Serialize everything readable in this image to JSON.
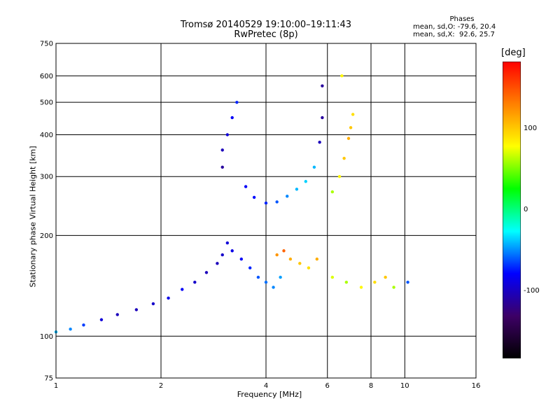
{
  "title_line1": "Tromsø 20140529 19:10:00–19:11:43",
  "title_line2": "RwPretec (8p)",
  "phases": {
    "header": "Phases",
    "line1": "mean, sd,O: -79.6, 20.4",
    "line2": "mean, sd,X:  92.6, 25.7"
  },
  "colorbar": {
    "label": "[deg]",
    "ticks": [
      "100",
      "0",
      "-100"
    ],
    "colors": [
      "#ff0000",
      "#ff8000",
      "#ffff00",
      "#00ff00",
      "#00ffff",
      "#0000ff",
      "#3d0066",
      "#000000"
    ]
  },
  "chart_data": {
    "type": "scatter",
    "title": "Tromsø 20140529 19:10:00–19:11:43",
    "subtitle": "RwPretec (8p)",
    "xlabel": "Frequency [MHz]",
    "ylabel": "Stationary phase Virtual Height [km]",
    "xscale": "log",
    "yscale": "log",
    "xlim": [
      1,
      16
    ],
    "ylim": [
      75,
      750
    ],
    "xticks": [
      1,
      2,
      4,
      6,
      8,
      10,
      16
    ],
    "yticks": [
      75,
      100,
      200,
      300,
      400,
      500,
      600,
      750
    ],
    "grid": true,
    "color_scale": "phase [deg], -180 to 180",
    "series": [
      {
        "values": [
          [
            1.0,
            103,
            -40
          ],
          [
            1.1,
            105,
            -50
          ],
          [
            1.2,
            108,
            -65
          ],
          [
            1.35,
            112,
            -90
          ],
          [
            1.5,
            116,
            -100
          ],
          [
            1.7,
            120,
            -100
          ],
          [
            1.9,
            125,
            -95
          ],
          [
            2.1,
            130,
            -85
          ],
          [
            2.3,
            138,
            -80
          ],
          [
            2.5,
            145,
            -95
          ],
          [
            2.7,
            155,
            -100
          ],
          [
            2.9,
            165,
            -100
          ],
          [
            3.0,
            175,
            -95
          ],
          [
            3.1,
            190,
            -90
          ],
          [
            3.2,
            180,
            -85
          ],
          [
            3.4,
            170,
            -80
          ],
          [
            3.6,
            160,
            -70
          ],
          [
            3.8,
            150,
            -60
          ],
          [
            4.0,
            145,
            -55
          ],
          [
            4.2,
            140,
            -50
          ],
          [
            4.4,
            150,
            -45
          ]
        ]
      },
      {
        "values": [
          [
            4.3,
            175,
            120
          ],
          [
            4.5,
            180,
            140
          ],
          [
            4.7,
            170,
            110
          ],
          [
            5.0,
            165,
            100
          ],
          [
            5.3,
            160,
            90
          ],
          [
            5.6,
            170,
            110
          ],
          [
            6.2,
            150,
            70
          ],
          [
            6.8,
            145,
            60
          ],
          [
            7.5,
            140,
            80
          ],
          [
            8.2,
            145,
            90
          ],
          [
            8.8,
            150,
            100
          ],
          [
            9.3,
            140,
            60
          ],
          [
            10.2,
            145,
            -60
          ]
        ]
      },
      {
        "values": [
          [
            3.0,
            320,
            -110
          ],
          [
            3.0,
            360,
            -100
          ],
          [
            3.1,
            400,
            -90
          ],
          [
            3.2,
            450,
            -80
          ],
          [
            3.3,
            500,
            -70
          ],
          [
            3.5,
            280,
            -80
          ],
          [
            3.7,
            260,
            -75
          ],
          [
            4.0,
            250,
            -70
          ],
          [
            4.3,
            252,
            -60
          ],
          [
            4.6,
            262,
            -50
          ],
          [
            4.9,
            275,
            -40
          ],
          [
            5.2,
            290,
            -35
          ],
          [
            5.5,
            320,
            -40
          ],
          [
            5.7,
            380,
            -100
          ],
          [
            5.8,
            450,
            -110
          ],
          [
            5.8,
            560,
            -110
          ]
        ]
      },
      {
        "values": [
          [
            6.2,
            270,
            60
          ],
          [
            6.5,
            300,
            80
          ],
          [
            6.7,
            340,
            100
          ],
          [
            6.9,
            390,
            110
          ],
          [
            7.0,
            420,
            100
          ],
          [
            7.1,
            460,
            90
          ],
          [
            6.6,
            600,
            80
          ]
        ]
      }
    ]
  }
}
